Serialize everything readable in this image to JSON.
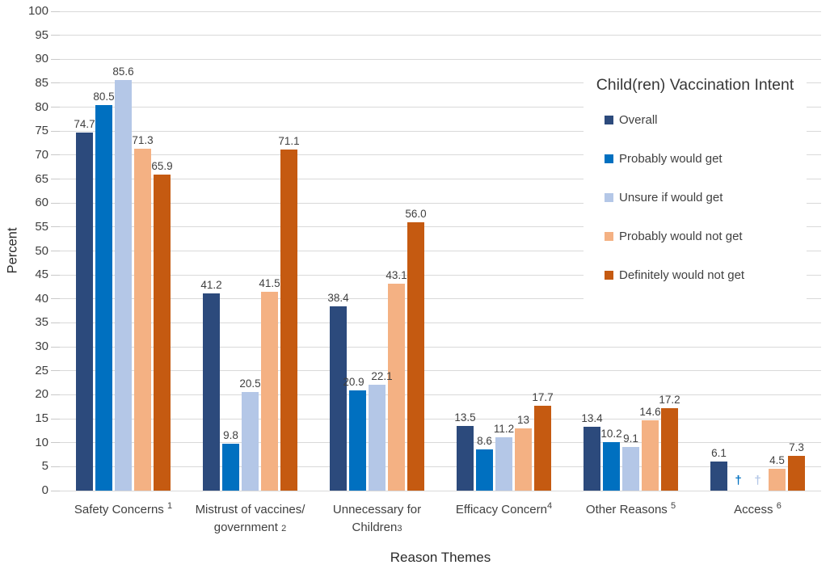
{
  "chart_data": {
    "type": "bar",
    "title": "",
    "xlabel": "Reason Themes",
    "ylabel": "Percent",
    "ylim": [
      0,
      100
    ],
    "ytick_step": 5,
    "grid": true,
    "legend_title": "Child(ren) Vaccination Intent",
    "legend_position": "right-inside",
    "dagger_symbol": "†",
    "categories": [
      {
        "lines": [
          "Safety Concerns"
        ],
        "footnote": "1",
        "footnote_style": "sup",
        "space_before_footnote": true
      },
      {
        "lines": [
          "Mistrust of vaccines/",
          "government"
        ],
        "footnote": "2",
        "footnote_style": "small",
        "space_before_footnote": true
      },
      {
        "lines": [
          "Unnecessary  for",
          "Children"
        ],
        "footnote": "3",
        "footnote_style": "small",
        "space_before_footnote": false
      },
      {
        "lines": [
          "Efficacy Concern"
        ],
        "footnote": "4",
        "footnote_style": "sup",
        "space_before_footnote": false
      },
      {
        "lines": [
          "Other Reasons"
        ],
        "footnote": "5",
        "footnote_style": "sup",
        "space_before_footnote": true
      },
      {
        "lines": [
          "Access"
        ],
        "footnote": "6",
        "footnote_style": "sup",
        "space_before_footnote": true
      }
    ],
    "series": [
      {
        "name": "Overall",
        "color": "#2C4A7C",
        "values": [
          74.7,
          41.2,
          38.4,
          13.5,
          13.4,
          6.1
        ],
        "labels": [
          "74.7",
          "41.2",
          "38.4",
          "13.5",
          "13.4",
          "6.1"
        ],
        "label_dx": [
          0,
          0,
          0,
          0,
          0,
          0
        ]
      },
      {
        "name": "Probably would get",
        "color": "#0070C0",
        "values": [
          80.5,
          9.8,
          20.9,
          8.6,
          10.2,
          null
        ],
        "labels": [
          "80.5",
          "9.8",
          "20.9",
          "8.6",
          "10.2",
          "†"
        ],
        "label_dx": [
          0,
          0,
          -5,
          0,
          0,
          0
        ]
      },
      {
        "name": "Unsure if would get",
        "color": "#B4C7E7",
        "values": [
          85.6,
          20.5,
          22.1,
          11.2,
          9.1,
          null
        ],
        "labels": [
          "85.6",
          "20.5",
          "22.1",
          "11.2",
          "9.1",
          "†"
        ],
        "label_dx": [
          0,
          0,
          6,
          0,
          0,
          0
        ]
      },
      {
        "name": "Probably would not get",
        "color": "#F4B183",
        "values": [
          71.3,
          41.5,
          43.1,
          13,
          14.6,
          4.5
        ],
        "labels": [
          "71.3",
          "41.5",
          "43.1",
          "13",
          "14.6",
          "4.5"
        ],
        "label_dx": [
          0,
          0,
          0,
          0,
          0,
          0
        ]
      },
      {
        "name": "Definitely would not get",
        "color": "#C55A11",
        "values": [
          65.9,
          71.1,
          56.0,
          17.7,
          17.2,
          7.3
        ],
        "labels": [
          "65.9",
          "71.1",
          "56.0",
          "17.7",
          "17.2",
          "7.3"
        ],
        "label_dx": [
          0,
          0,
          0,
          0,
          0,
          0
        ]
      }
    ]
  },
  "colors": {
    "gridline": "#D9D9D9",
    "tick": "#C9C9C9",
    "value_label_text": "#404040",
    "axis_text": "#404040",
    "background": "#FFFFFF"
  }
}
